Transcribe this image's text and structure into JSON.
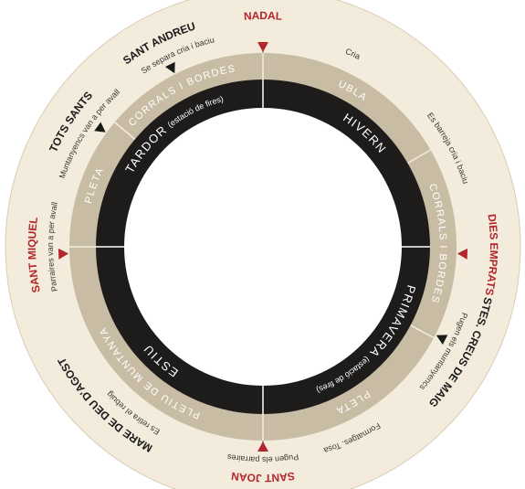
{
  "markers": [
    {
      "label": "NADAL",
      "color": "#b3262a"
    },
    {
      "label": "DIES EMPRATS",
      "color": "#b3262a"
    },
    {
      "label": "STES. CREUS DE MAIG",
      "color": "#1a1a1a"
    },
    {
      "label": "SANT JOAN",
      "color": "#b3262a"
    },
    {
      "label": "MARE DE DEU D'AGOST",
      "color": "#1a1a1a"
    },
    {
      "label": "SANT MIQUEL",
      "color": "#b3262a"
    },
    {
      "label": "TOTS SANTS",
      "color": "#1a1a1a"
    },
    {
      "label": "SANT ANDREU",
      "color": "#1a1a1a"
    }
  ],
  "notes": [
    "Cria",
    "Es barreja cria i baciu",
    "Pugen els muntanyencs",
    "Formatges. Tosa",
    "Pugen els parraires",
    "Es retira el rebuig",
    "Parraires van a per avall",
    "Muntanyencs van a per avall",
    "Se separa cria i baciu"
  ],
  "zones": [
    "UBLA",
    "CORRALS I BORDES",
    "PLETA",
    "PLETIU DE MUNTANYA",
    "PLETA",
    "CORRALS I BORDES"
  ],
  "seasons": [
    {
      "name": "HIVERN"
    },
    {
      "name": "PRIMAVERA",
      "note": "(estació de fires)"
    },
    {
      "name": "ESTIU"
    },
    {
      "name": "TARDOR",
      "note": "(estació de fires)"
    }
  ]
}
